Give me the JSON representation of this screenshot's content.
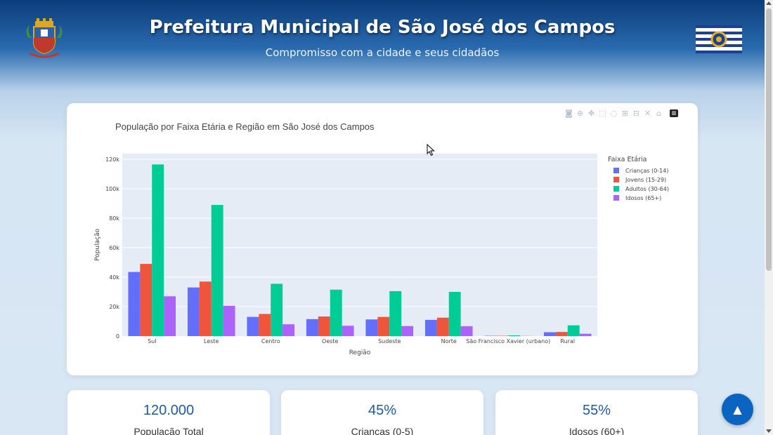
{
  "header": {
    "title": "Prefeitura Municipal de São José dos Campos",
    "subtitle": "Compromisso com a cidade e seus cidadãos"
  },
  "modebar": {
    "icons": [
      "camera-icon",
      "zoom-icon",
      "pan-icon",
      "box-select-icon",
      "lasso-icon",
      "zoom-in-icon",
      "zoom-out-icon",
      "autoscale-icon",
      "reset-axes-icon",
      "plotly-logo"
    ]
  },
  "chart_data": {
    "type": "bar",
    "title": "População por Faixa Etária e Região em São José dos Campos",
    "xlabel": "Região",
    "ylabel": "População",
    "ylim": [
      0,
      120000
    ],
    "yticks": [
      0,
      20000,
      40000,
      60000,
      80000,
      100000,
      120000
    ],
    "ytick_labels": [
      "0",
      "20k",
      "40k",
      "60k",
      "80k",
      "100k",
      "120k"
    ],
    "grid": true,
    "legend_title": "Faixa Etária",
    "legend_position": "top-right",
    "categories": [
      "Sul",
      "Leste",
      "Centro",
      "Oeste",
      "Sudeste",
      "Norte",
      "São Francisco Xavier (urbano)",
      "Rural"
    ],
    "category_labels": [
      "Sul",
      "Leste",
      "Centro",
      "Oeste",
      "Sudeste",
      "Norte",
      "São Francisco Xavier (urbano)",
      "Rural"
    ],
    "series": [
      {
        "name": "Crianças (0-14)",
        "color": "#636efa",
        "values": [
          43500,
          33000,
          13000,
          11500,
          11300,
          11000,
          200,
          2600
        ]
      },
      {
        "name": "Jovens (15-29)",
        "color": "#ef553b",
        "values": [
          49000,
          37000,
          15000,
          13300,
          13000,
          12500,
          200,
          2800
        ]
      },
      {
        "name": "Adultos (30-64)",
        "color": "#00cc96",
        "values": [
          116500,
          89000,
          35500,
          31500,
          30500,
          30000,
          500,
          7300
        ]
      },
      {
        "name": "Idosos (65+)",
        "color": "#ab63fa",
        "values": [
          27000,
          20500,
          8000,
          7000,
          6800,
          6700,
          100,
          1600
        ]
      }
    ],
    "colors": {
      "plot_bg": "#e5ecf6",
      "grid": "#ffffff"
    }
  },
  "stats": [
    {
      "value": "120.000",
      "label": "População Total"
    },
    {
      "value": "45%",
      "label": "Crianças (0-5)"
    },
    {
      "value": "55%",
      "label": "Idosos (60+)"
    }
  ],
  "scroll_top": {
    "icon": "arrow-up-icon"
  },
  "colors": {
    "accent": "#0b64c0",
    "stat_value": "#1f5a9e",
    "header_dark": "#0b3d7a"
  }
}
